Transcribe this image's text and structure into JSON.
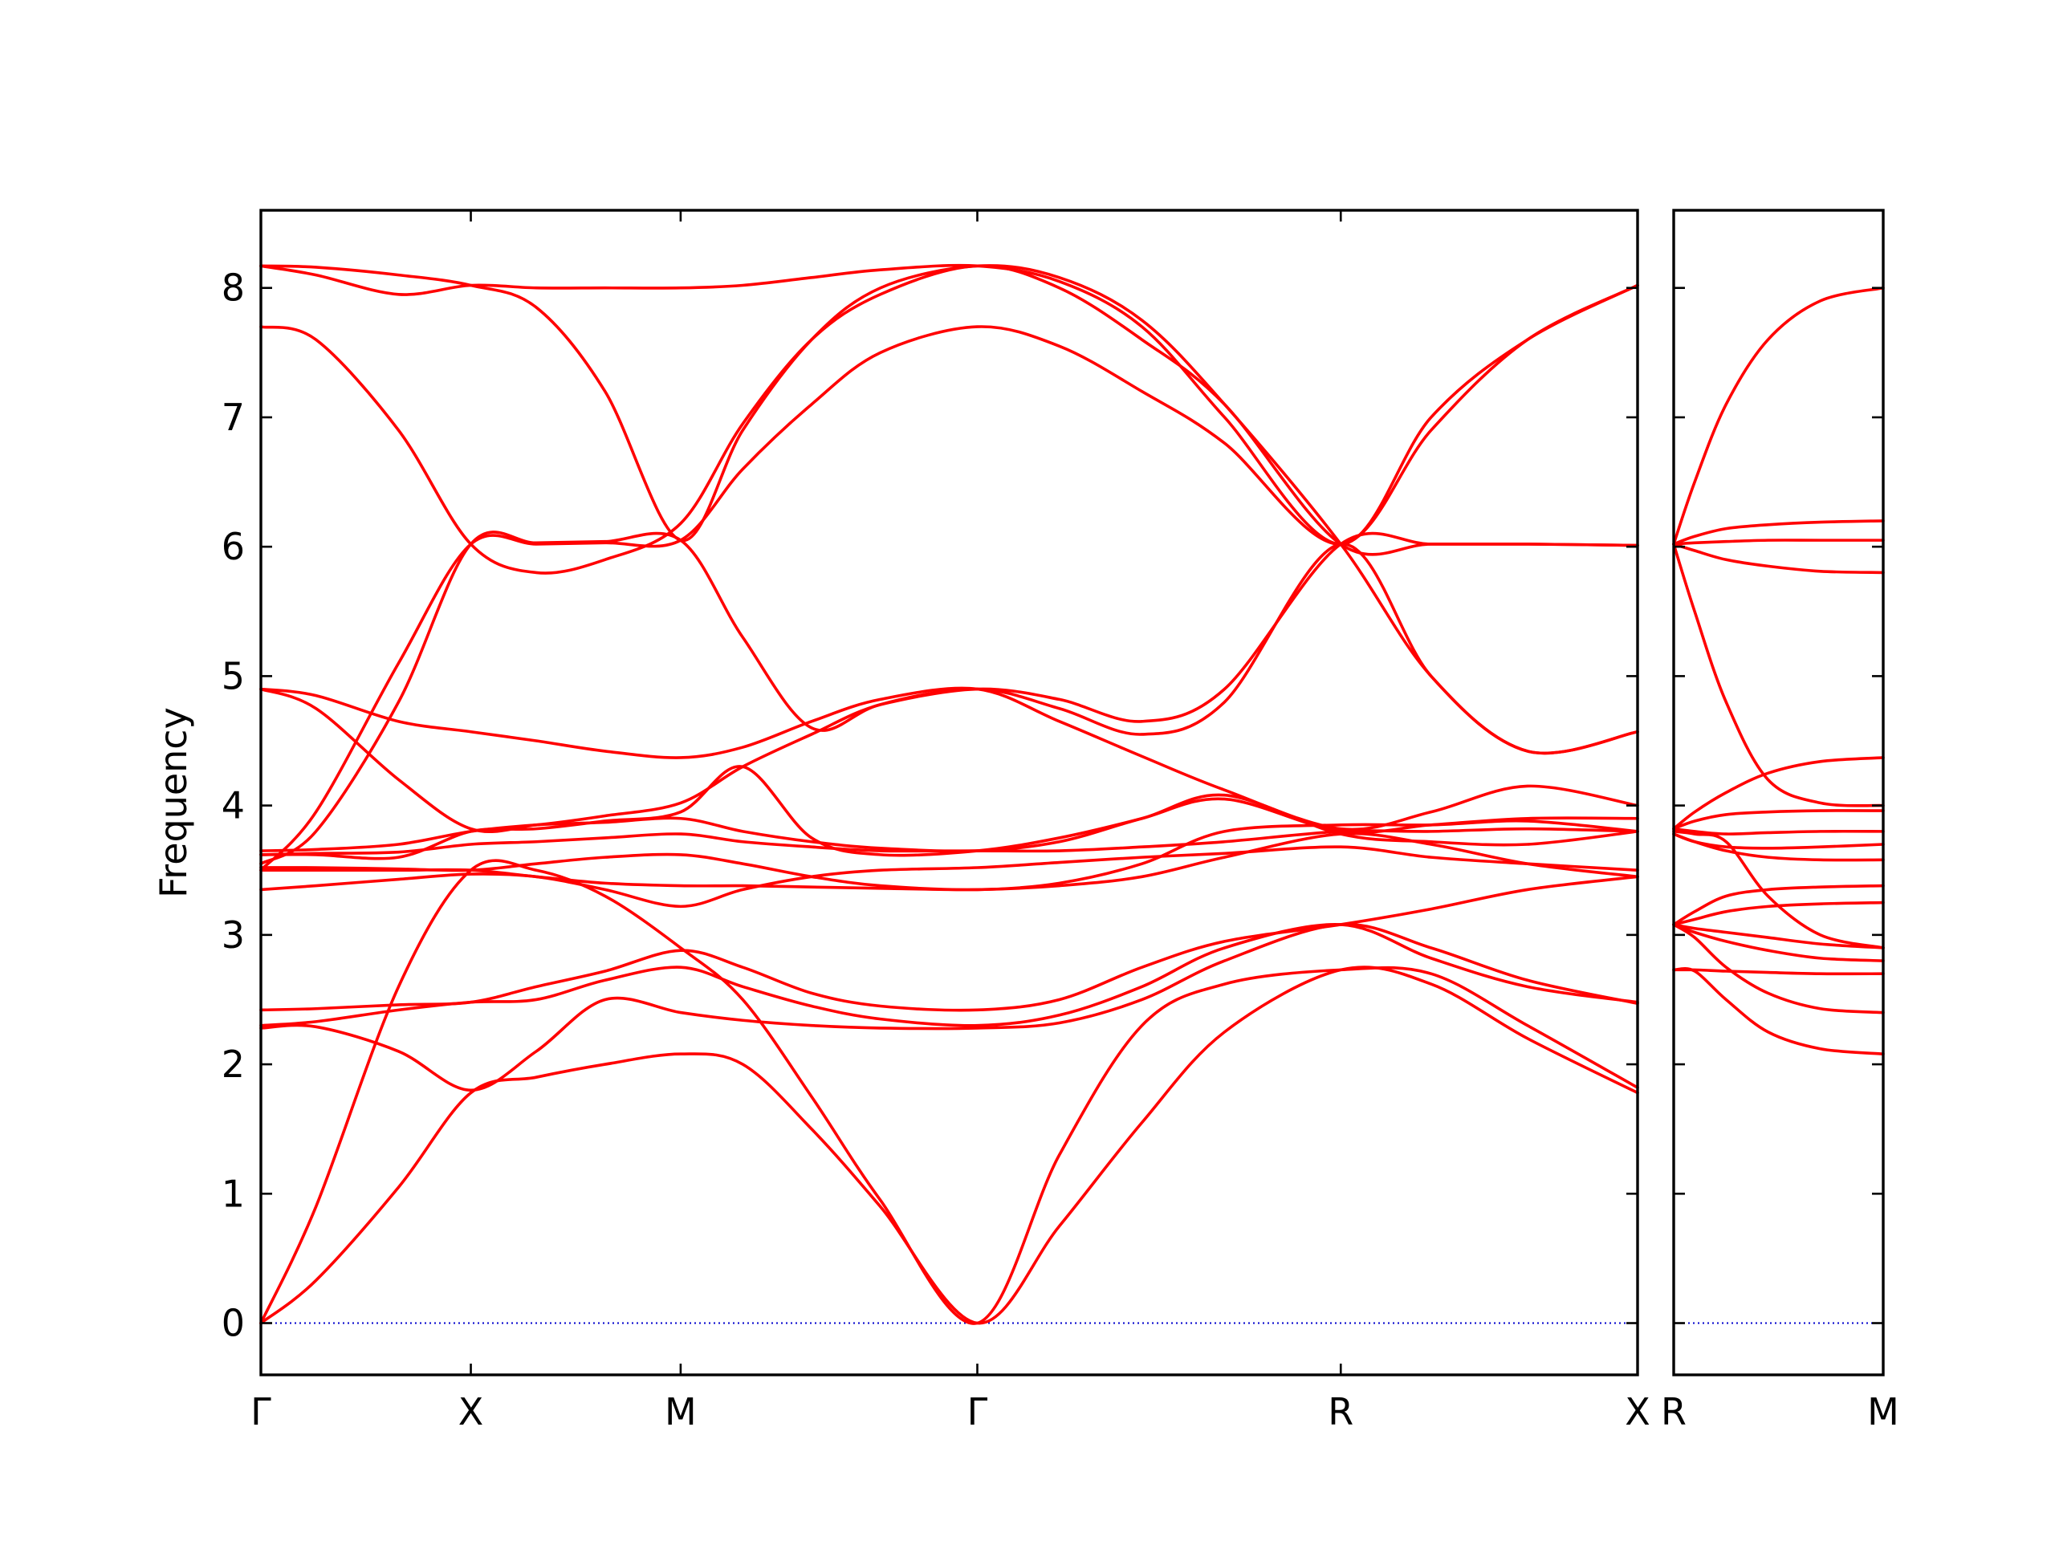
{
  "colors": {
    "bands": "#ff0000",
    "zero_line": "#0000cc",
    "axes": "#000000"
  },
  "chart_data": [
    {
      "type": "line",
      "panel": "main",
      "title": "",
      "xlabel": "",
      "ylabel": "Frequency",
      "ylim": [
        -0.4,
        8.6
      ],
      "yticks": [
        0,
        1,
        2,
        3,
        4,
        5,
        6,
        7,
        8
      ],
      "xlim": [
        0,
        1
      ],
      "grid": false,
      "legend": "none",
      "high_symmetry_points": [
        {
          "label": "Γ",
          "x": 0.0
        },
        {
          "label": "X",
          "x": 0.1525
        },
        {
          "label": "M",
          "x": 0.3049
        },
        {
          "label": "Γ",
          "x": 0.5204
        },
        {
          "label": "R",
          "x": 0.7844
        },
        {
          "label": "X",
          "x": 1.0
        }
      ],
      "zero_line": 0,
      "series": [
        {
          "x": [
            0,
            0.04,
            0.1,
            0.1525,
            0.2,
            0.25,
            0.3049,
            0.35,
            0.4,
            0.45,
            0.5204,
            0.58,
            0.64,
            0.7,
            0.7844,
            0.85,
            0.92,
            1.0
          ],
          "values": [
            0,
            0.33,
            1.05,
            1.78,
            1.9,
            2.0,
            2.08,
            2.0,
            1.5,
            0.9,
            0,
            0.75,
            1.55,
            2.25,
            2.73,
            2.62,
            2.2,
            1.78
          ]
        },
        {
          "x": [
            0,
            0.04,
            0.1,
            0.1525,
            0.2,
            0.25,
            0.3049,
            0.35,
            0.4,
            0.45,
            0.5204,
            0.58,
            0.64,
            0.7,
            0.7844,
            0.85,
            0.92,
            1.0
          ],
          "values": [
            0,
            0.9,
            2.6,
            3.5,
            3.5,
            3.3,
            2.9,
            2.5,
            1.75,
            0.95,
            0,
            1.3,
            2.3,
            2.62,
            2.73,
            2.7,
            2.3,
            1.82
          ]
        },
        {
          "x": [
            0,
            0.04,
            0.1,
            0.1525,
            0.2,
            0.25,
            0.3049,
            0.35,
            0.4,
            0.45,
            0.5204,
            0.58,
            0.64,
            0.7,
            0.7844,
            0.85,
            0.92,
            1.0
          ],
          "values": [
            2.28,
            2.29,
            2.1,
            1.8,
            2.1,
            2.5,
            2.4,
            2.34,
            2.3,
            2.28,
            2.28,
            2.32,
            2.5,
            2.8,
            3.08,
            2.9,
            2.65,
            2.47
          ]
        },
        {
          "x": [
            0,
            0.04,
            0.1,
            0.1525,
            0.2,
            0.25,
            0.3049,
            0.35,
            0.4,
            0.45,
            0.5204,
            0.58,
            0.64,
            0.7,
            0.7844,
            0.85,
            0.92,
            1.0
          ],
          "values": [
            2.3,
            2.33,
            2.42,
            2.48,
            2.5,
            2.65,
            2.75,
            2.6,
            2.45,
            2.35,
            2.3,
            2.38,
            2.6,
            2.9,
            3.08,
            2.82,
            2.6,
            2.48
          ]
        },
        {
          "x": [
            0,
            0.04,
            0.1,
            0.1525,
            0.2,
            0.25,
            0.3049,
            0.35,
            0.4,
            0.45,
            0.5204,
            0.58,
            0.64,
            0.7,
            0.7844,
            0.85,
            0.92,
            1.0
          ],
          "values": [
            2.42,
            2.43,
            2.46,
            2.48,
            2.6,
            2.72,
            2.88,
            2.75,
            2.55,
            2.45,
            2.42,
            2.5,
            2.75,
            2.95,
            3.08,
            3.2,
            3.35,
            3.45
          ]
        },
        {
          "x": [
            0,
            0.04,
            0.1,
            0.1525,
            0.2,
            0.25,
            0.3049,
            0.35,
            0.4,
            0.45,
            0.5204,
            0.58,
            0.64,
            0.7,
            0.7844,
            0.85,
            0.92,
            1.0
          ],
          "values": [
            3.35,
            3.38,
            3.43,
            3.47,
            3.45,
            3.35,
            3.22,
            3.35,
            3.45,
            3.5,
            3.52,
            3.56,
            3.6,
            3.63,
            3.68,
            3.6,
            3.55,
            3.5
          ]
        },
        {
          "x": [
            0,
            0.04,
            0.1,
            0.1525,
            0.2,
            0.25,
            0.3049,
            0.35,
            0.4,
            0.45,
            0.5204,
            0.58,
            0.64,
            0.7,
            0.7844,
            0.85,
            0.92,
            1.0
          ],
          "values": [
            3.5,
            3.5,
            3.5,
            3.5,
            3.45,
            3.4,
            3.38,
            3.38,
            3.37,
            3.36,
            3.35,
            3.38,
            3.45,
            3.6,
            3.78,
            3.7,
            3.55,
            3.45
          ]
        },
        {
          "x": [
            0,
            0.04,
            0.1,
            0.1525,
            0.2,
            0.25,
            0.3049,
            0.35,
            0.4,
            0.45,
            0.5204,
            0.58,
            0.64,
            0.7,
            0.7844,
            0.85,
            0.92,
            1.0
          ],
          "values": [
            3.52,
            3.52,
            3.51,
            3.5,
            3.55,
            3.6,
            3.62,
            3.55,
            3.45,
            3.38,
            3.35,
            3.4,
            3.55,
            3.8,
            3.85,
            3.85,
            3.88,
            3.8
          ]
        },
        {
          "x": [
            0,
            0.04,
            0.1,
            0.1525,
            0.2,
            0.25,
            0.3049,
            0.35,
            0.4,
            0.45,
            0.5204,
            0.58,
            0.64,
            0.7,
            0.7844,
            0.85,
            0.92,
            1.0
          ],
          "values": [
            3.62,
            3.63,
            3.64,
            3.7,
            3.72,
            3.75,
            3.78,
            3.72,
            3.68,
            3.65,
            3.65,
            3.65,
            3.68,
            3.72,
            3.8,
            3.8,
            3.82,
            3.8
          ]
        },
        {
          "x": [
            0,
            0.04,
            0.1,
            0.1525,
            0.2,
            0.25,
            0.3049,
            0.35,
            0.4,
            0.45,
            0.5204,
            0.58,
            0.64,
            0.7,
            0.7844,
            0.85,
            0.92,
            1.0
          ],
          "values": [
            3.65,
            3.66,
            3.7,
            3.8,
            3.85,
            3.87,
            3.9,
            3.8,
            3.72,
            3.67,
            3.65,
            3.72,
            3.9,
            4.05,
            3.8,
            3.85,
            3.9,
            3.9
          ]
        },
        {
          "x": [
            0,
            0.04,
            0.1,
            0.1525,
            0.2,
            0.25,
            0.3049,
            0.35,
            0.4,
            0.45,
            0.5204,
            0.58,
            0.64,
            0.7,
            0.7844,
            0.85,
            0.92,
            1.0
          ],
          "values": [
            4.9,
            4.85,
            4.65,
            4.57,
            4.5,
            4.42,
            4.37,
            4.45,
            4.65,
            4.82,
            4.9,
            4.65,
            4.38,
            4.12,
            3.82,
            3.95,
            4.15,
            4.0
          ]
        },
        {
          "x": [
            0,
            0.04,
            0.1,
            0.1525,
            0.2,
            0.25,
            0.3049,
            0.35,
            0.4,
            0.45,
            0.5204,
            0.58,
            0.64,
            0.7,
            0.7844,
            0.85,
            0.92,
            1.0
          ],
          "values": [
            4.9,
            4.75,
            4.2,
            3.82,
            3.85,
            3.92,
            4.02,
            4.3,
            4.55,
            4.78,
            4.9,
            4.75,
            4.55,
            4.8,
            6.02,
            5.0,
            4.42,
            4.57
          ]
        },
        {
          "x": [
            0,
            0.04,
            0.1,
            0.1525,
            0.2,
            0.25,
            0.3049,
            0.35,
            0.4,
            0.45,
            0.5204,
            0.58,
            0.64,
            0.7,
            0.7844,
            0.85,
            0.92,
            1.0
          ],
          "values": [
            3.55,
            3.8,
            4.8,
            6.02,
            6.03,
            6.04,
            6.05,
            5.3,
            4.6,
            4.78,
            4.9,
            4.82,
            4.65,
            4.9,
            6.02,
            6.02,
            6.02,
            6.01
          ]
        },
        {
          "x": [
            0,
            0.04,
            0.1,
            0.1525,
            0.2,
            0.25,
            0.3049,
            0.35,
            0.4,
            0.45,
            0.5204,
            0.58,
            0.64,
            0.7,
            0.7844,
            0.85,
            0.92,
            1.0
          ],
          "values": [
            3.5,
            3.95,
            5.1,
            6.02,
            6.02,
            6.03,
            6.05,
            6.6,
            7.1,
            7.5,
            7.7,
            7.55,
            7.2,
            6.8,
            6.02,
            6.9,
            7.6,
            8.02
          ]
        },
        {
          "x": [
            0,
            0.04,
            0.1,
            0.1525,
            0.2,
            0.25,
            0.3049,
            0.35,
            0.4,
            0.45,
            0.5204,
            0.58,
            0.64,
            0.7,
            0.7844,
            0.85,
            0.92,
            1.0
          ],
          "values": [
            7.7,
            7.6,
            6.9,
            6.02,
            5.8,
            5.9,
            6.18,
            6.95,
            7.6,
            7.95,
            8.17,
            8.0,
            7.6,
            7.1,
            6.02,
            6.02,
            6.02,
            6.01
          ]
        },
        {
          "x": [
            0,
            0.04,
            0.1,
            0.1525,
            0.2,
            0.25,
            0.3049,
            0.35,
            0.4,
            0.45,
            0.5204,
            0.58,
            0.64,
            0.7,
            0.7844,
            0.85,
            0.92,
            1.0
          ],
          "values": [
            8.17,
            8.1,
            7.95,
            8.02,
            8.0,
            8.0,
            8.0,
            8.02,
            8.08,
            8.14,
            8.17,
            8.05,
            7.7,
            7.0,
            6.02,
            7.0,
            7.6,
            8.02
          ]
        },
        {
          "x": [
            0,
            0.04,
            0.1,
            0.1525,
            0.2,
            0.25,
            0.3049,
            0.35,
            0.4,
            0.45,
            0.5204,
            0.58,
            0.64,
            0.7,
            0.7844,
            0.85,
            0.92,
            1.0
          ],
          "values": [
            8.17,
            8.16,
            8.1,
            8.02,
            7.85,
            7.2,
            6.05,
            6.9,
            7.6,
            8.0,
            8.17,
            8.08,
            7.75,
            7.1,
            6.02,
            5.0,
            4.42,
            4.57
          ]
        },
        {
          "x": [
            0,
            0.04,
            0.1,
            0.1525,
            0.2,
            0.25,
            0.3049,
            0.35,
            0.4,
            0.45,
            0.5204,
            0.58,
            0.64,
            0.7,
            0.7844,
            0.85,
            0.92,
            1.0
          ],
          "values": [
            3.62,
            3.62,
            3.6,
            3.8,
            3.82,
            3.88,
            3.95,
            4.3,
            3.75,
            3.62,
            3.65,
            3.75,
            3.9,
            4.08,
            3.78,
            3.72,
            3.7,
            3.8
          ]
        }
      ]
    },
    {
      "type": "line",
      "panel": "right",
      "title": "",
      "xlabel": "",
      "ylabel": "",
      "ylim": [
        -0.4,
        8.6
      ],
      "xlim": [
        0,
        1
      ],
      "grid": false,
      "legend": "none",
      "high_symmetry_points": [
        {
          "label": "R",
          "x": 0.0
        },
        {
          "label": "M",
          "x": 1.0
        }
      ],
      "zero_line": 0,
      "series": [
        {
          "x": [
            0,
            0.1,
            0.25,
            0.45,
            0.7,
            1.0
          ],
          "values": [
            2.73,
            2.72,
            2.5,
            2.25,
            2.12,
            2.08
          ]
        },
        {
          "x": [
            0,
            0.1,
            0.25,
            0.45,
            0.7,
            1.0
          ],
          "values": [
            2.73,
            2.73,
            2.72,
            2.71,
            2.7,
            2.7
          ]
        },
        {
          "x": [
            0,
            0.1,
            0.25,
            0.45,
            0.7,
            1.0
          ],
          "values": [
            3.08,
            2.98,
            2.75,
            2.55,
            2.43,
            2.4
          ]
        },
        {
          "x": [
            0,
            0.1,
            0.25,
            0.45,
            0.7,
            1.0
          ],
          "values": [
            3.08,
            3.02,
            2.95,
            2.88,
            2.82,
            2.8
          ]
        },
        {
          "x": [
            0,
            0.1,
            0.25,
            0.45,
            0.7,
            1.0
          ],
          "values": [
            3.08,
            3.05,
            3.02,
            2.98,
            2.93,
            2.9
          ]
        },
        {
          "x": [
            0,
            0.1,
            0.25,
            0.45,
            0.7,
            1.0
          ],
          "values": [
            3.08,
            3.12,
            3.18,
            3.22,
            3.24,
            3.25
          ]
        },
        {
          "x": [
            0,
            0.1,
            0.25,
            0.45,
            0.7,
            1.0
          ],
          "values": [
            3.08,
            3.18,
            3.3,
            3.35,
            3.37,
            3.38
          ]
        },
        {
          "x": [
            0,
            0.1,
            0.25,
            0.45,
            0.7,
            1.0
          ],
          "values": [
            3.78,
            3.72,
            3.65,
            3.6,
            3.58,
            3.58
          ]
        },
        {
          "x": [
            0,
            0.1,
            0.25,
            0.45,
            0.7,
            1.0
          ],
          "values": [
            3.78,
            3.72,
            3.68,
            3.67,
            3.68,
            3.7
          ]
        },
        {
          "x": [
            0,
            0.1,
            0.25,
            0.45,
            0.7,
            1.0
          ],
          "values": [
            3.8,
            3.78,
            3.72,
            3.3,
            3.0,
            2.9
          ]
        },
        {
          "x": [
            0,
            0.1,
            0.25,
            0.45,
            0.7,
            1.0
          ],
          "values": [
            3.82,
            3.8,
            3.78,
            3.79,
            3.8,
            3.8
          ]
        },
        {
          "x": [
            0,
            0.1,
            0.25,
            0.45,
            0.7,
            1.0
          ],
          "values": [
            3.82,
            3.88,
            3.93,
            3.95,
            3.96,
            3.96
          ]
        },
        {
          "x": [
            0,
            0.1,
            0.25,
            0.45,
            0.7,
            1.0
          ],
          "values": [
            3.82,
            3.95,
            4.1,
            4.25,
            4.34,
            4.37
          ]
        },
        {
          "x": [
            0,
            0.1,
            0.25,
            0.45,
            0.7,
            1.0
          ],
          "values": [
            6.02,
            5.5,
            4.8,
            4.2,
            4.02,
            4.0
          ]
        },
        {
          "x": [
            0,
            0.1,
            0.25,
            0.45,
            0.7,
            1.0
          ],
          "values": [
            6.02,
            5.97,
            5.9,
            5.85,
            5.81,
            5.8
          ]
        },
        {
          "x": [
            0,
            0.1,
            0.25,
            0.45,
            0.7,
            1.0
          ],
          "values": [
            6.02,
            6.03,
            6.04,
            6.05,
            6.05,
            6.05
          ]
        },
        {
          "x": [
            0,
            0.1,
            0.25,
            0.45,
            0.7,
            1.0
          ],
          "values": [
            6.02,
            6.08,
            6.14,
            6.17,
            6.19,
            6.2
          ]
        },
        {
          "x": [
            0,
            0.1,
            0.25,
            0.45,
            0.7,
            1.0
          ],
          "values": [
            6.02,
            6.5,
            7.1,
            7.6,
            7.9,
            8.0
          ]
        }
      ]
    }
  ]
}
